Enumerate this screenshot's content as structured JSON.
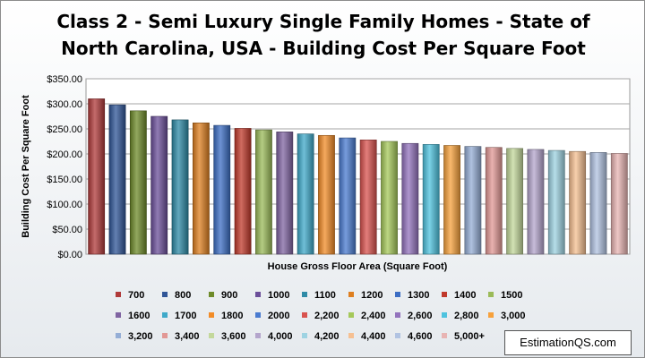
{
  "chart_data": {
    "type": "bar",
    "title_lines": [
      "Class 2 - Semi Luxury Single Family Homes  - State of",
      "North Carolina, USA  - Building Cost Per Square Foot"
    ],
    "xlabel": "House Gross Floor Area (Square Foot)",
    "ylabel": "Building Cost Per Square Foot",
    "ylim": [
      0,
      350
    ],
    "yticks": [
      "$0.00",
      "$50.00",
      "$100.00",
      "$150.00",
      "$200.00",
      "$250.00",
      "$300.00",
      "$350.00"
    ],
    "grid": true,
    "legend_position": "bottom",
    "series": [
      {
        "name": "700",
        "value": 310,
        "color": "#b03a3a"
      },
      {
        "name": "800",
        "value": 298,
        "color": "#2f5597"
      },
      {
        "name": "900",
        "value": 286,
        "color": "#6e8b2a"
      },
      {
        "name": "1000",
        "value": 275,
        "color": "#6b4f9a"
      },
      {
        "name": "1100",
        "value": 268,
        "color": "#2e8aa6"
      },
      {
        "name": "1200",
        "value": 262,
        "color": "#de7f20"
      },
      {
        "name": "1300",
        "value": 257,
        "color": "#3c6ec4"
      },
      {
        "name": "1400",
        "value": 251,
        "color": "#c0392b"
      },
      {
        "name": "1500",
        "value": 248,
        "color": "#9bbb59"
      },
      {
        "name": "1600",
        "value": 244,
        "color": "#8064a2"
      },
      {
        "name": "1700",
        "value": 240,
        "color": "#3fa9c9"
      },
      {
        "name": "1800",
        "value": 237,
        "color": "#f28c28"
      },
      {
        "name": "2000",
        "value": 232,
        "color": "#4a7bd0"
      },
      {
        "name": "2,200",
        "value": 228,
        "color": "#d9534f"
      },
      {
        "name": "2,400",
        "value": 225,
        "color": "#a5c85a"
      },
      {
        "name": "2,600",
        "value": 221,
        "color": "#9373bd"
      },
      {
        "name": "2,800",
        "value": 219,
        "color": "#4fc3df"
      },
      {
        "name": "3,000",
        "value": 217,
        "color": "#f7a13c"
      },
      {
        "name": "3,200",
        "value": 215,
        "color": "#95aed6"
      },
      {
        "name": "3,400",
        "value": 213,
        "color": "#e29895"
      },
      {
        "name": "3,600",
        "value": 211,
        "color": "#c3d89b"
      },
      {
        "name": "4,000",
        "value": 209,
        "color": "#b4a5cc"
      },
      {
        "name": "4,200",
        "value": 207,
        "color": "#9ed3e2"
      },
      {
        "name": "4,400",
        "value": 205,
        "color": "#f6c092"
      },
      {
        "name": "4,600",
        "value": 203,
        "color": "#b1c3e2"
      },
      {
        "name": "5,000+",
        "value": 201,
        "color": "#e8b4b3"
      }
    ]
  },
  "watermark": "EstimationQS.com"
}
